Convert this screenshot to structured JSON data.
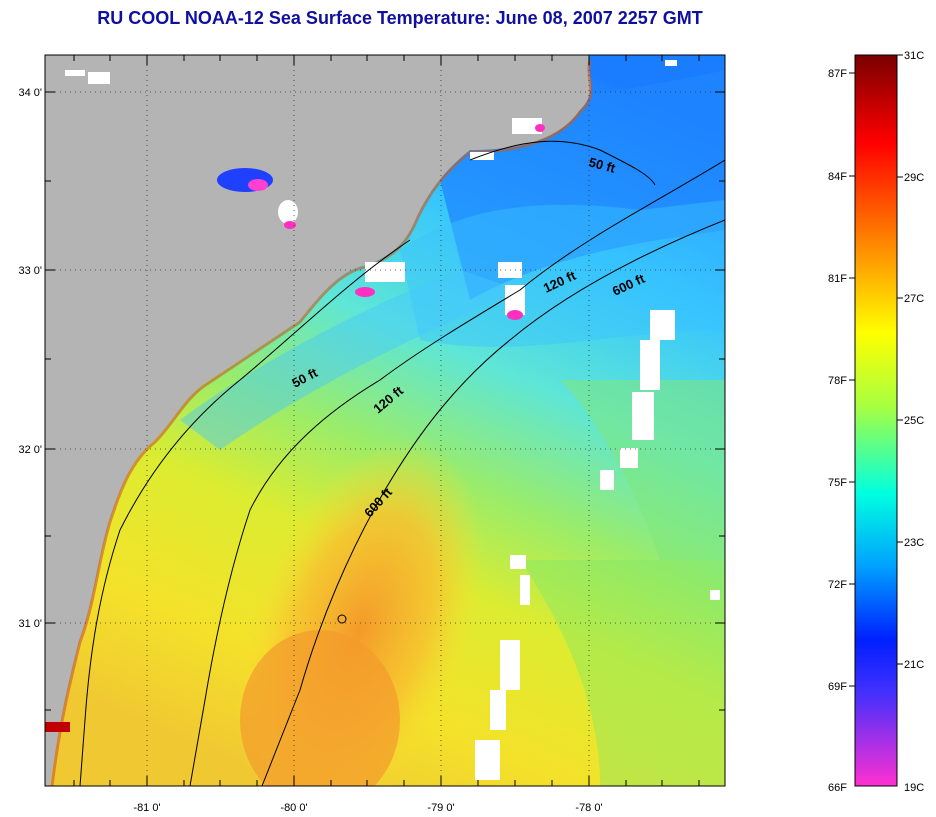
{
  "title": "RU COOL  NOAA-12  Sea Surface Temperature:  June 08, 2007 2257 GMT",
  "map": {
    "lon_ticks": [
      "-81 0'",
      "-80 0'",
      "-79 0'",
      "-78 0'"
    ],
    "lat_ticks": [
      "34 0'",
      "33 0'",
      "32 0'",
      "31 0'"
    ],
    "contours": [
      {
        "label": "50 ft"
      },
      {
        "label": "120 ft"
      },
      {
        "label": "600 ft"
      },
      {
        "label": "50 ft"
      },
      {
        "label": "120 ft"
      },
      {
        "label": "600 ft"
      }
    ]
  },
  "colorbar": {
    "fahrenheit_labels": [
      "87F",
      "84F",
      "81F",
      "78F",
      "75F",
      "72F",
      "69F",
      "66F"
    ],
    "celsius_labels": [
      "31C",
      "29C",
      "27C",
      "25C",
      "23C",
      "21C",
      "19C"
    ],
    "colors": [
      "#800000",
      "#ff0000",
      "#ff8000",
      "#ffff00",
      "#80ff00",
      "#00ffff",
      "#0080ff",
      "#0000ff",
      "#ff40ff"
    ]
  },
  "colors": {
    "land": "#b4b4b4",
    "title": "#1010a0",
    "cold_water": "#1e96ff",
    "mid_water": "#78e678",
    "warm_water": "#f0e628",
    "hot_water": "#ff9628",
    "cloud": "#ffffff"
  }
}
